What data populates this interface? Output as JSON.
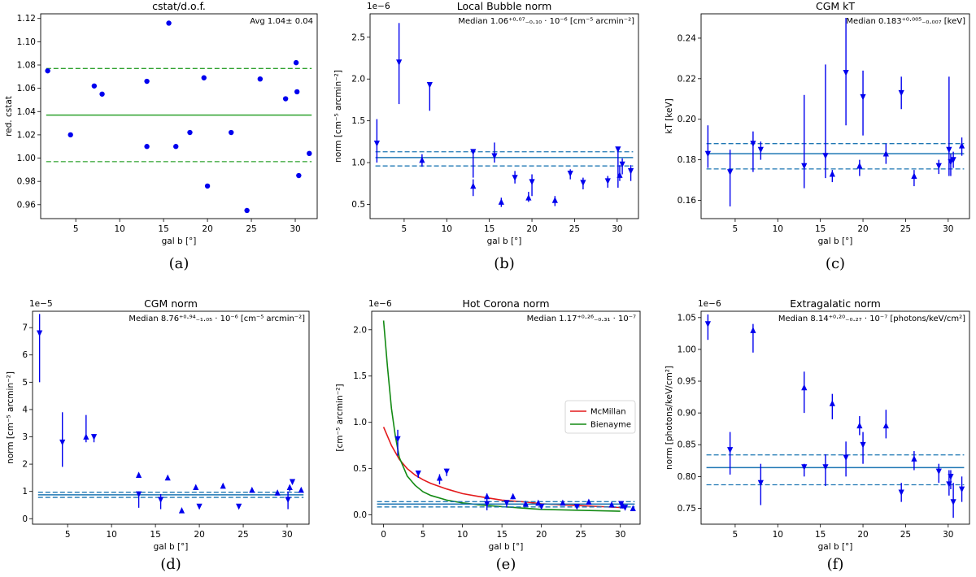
{
  "chart_data": [
    {
      "id": "a",
      "type": "scatter",
      "caption": "(a)",
      "title": "cstat/d.o.f.",
      "annotation": "Avg 1.04± 0.04",
      "xlabel": "gal b [°]",
      "ylabel": "red. cstat",
      "xlim": [
        1,
        32.5
      ],
      "ylim": [
        0.948,
        1.124
      ],
      "xticks": [
        5,
        10,
        15,
        20,
        25,
        30
      ],
      "yticks": [
        0.96,
        0.98,
        1.0,
        1.02,
        1.04,
        1.06,
        1.08,
        1.1,
        1.12
      ],
      "ytick_labels": [
        "0.96",
        "0.98",
        "1.00",
        "1.02",
        "1.04",
        "1.06",
        "1.08",
        "1.10",
        "1.12"
      ],
      "ref_color": "#2ca02c",
      "ref_line": 1.037,
      "ref_band": [
        0.997,
        1.077
      ],
      "points": [
        {
          "x": 1.8,
          "y": 1.075
        },
        {
          "x": 4.4,
          "y": 1.02
        },
        {
          "x": 7.1,
          "y": 1.062
        },
        {
          "x": 8.0,
          "y": 1.055
        },
        {
          "x": 13.1,
          "y": 1.066
        },
        {
          "x": 13.1,
          "y": 1.01
        },
        {
          "x": 15.6,
          "y": 1.116
        },
        {
          "x": 16.4,
          "y": 1.01
        },
        {
          "x": 18.0,
          "y": 1.022
        },
        {
          "x": 19.6,
          "y": 1.069
        },
        {
          "x": 20.0,
          "y": 0.976
        },
        {
          "x": 22.7,
          "y": 1.022
        },
        {
          "x": 24.5,
          "y": 0.955
        },
        {
          "x": 26.0,
          "y": 1.068
        },
        {
          "x": 28.9,
          "y": 1.051
        },
        {
          "x": 30.1,
          "y": 1.082
        },
        {
          "x": 30.2,
          "y": 1.057
        },
        {
          "x": 30.4,
          "y": 0.985
        },
        {
          "x": 31.6,
          "y": 1.004
        }
      ]
    },
    {
      "id": "b",
      "type": "scatter",
      "caption": "(b)",
      "title": "Local Bubble norm",
      "annotation": "Median 1.06⁺⁰·⁰⁷₋₀.₁₀ · 10⁻⁶ [cm⁻⁵ arcmin⁻²]",
      "multiplier": "1e−6",
      "xlabel": "gal b [°]",
      "ylabel": "norm [cm⁻⁵ arcmin⁻²]",
      "xlim": [
        1,
        32.5
      ],
      "ylim": [
        0.33,
        2.78
      ],
      "xticks": [
        5,
        10,
        15,
        20,
        25,
        30
      ],
      "yticks": [
        0.5,
        1.0,
        1.5,
        2.0,
        2.5
      ],
      "ytick_labels": [
        "0.5",
        "1.0",
        "1.5",
        "2.0",
        "2.5"
      ],
      "ref_color": "#1f77b4",
      "ref_line": 1.06,
      "ref_band": [
        0.96,
        1.13
      ],
      "points": [
        {
          "x": 1.8,
          "y": 1.23,
          "lo": 1.0,
          "hi": 1.52,
          "m": "down"
        },
        {
          "x": 4.4,
          "y": 2.2,
          "lo": 1.7,
          "hi": 2.67,
          "m": "down"
        },
        {
          "x": 7.1,
          "y": 1.03,
          "lo": 0.95,
          "hi": 1.1,
          "m": "up"
        },
        {
          "x": 8.0,
          "y": 1.93,
          "lo": 1.62,
          "hi": 1.95,
          "m": "down"
        },
        {
          "x": 13.1,
          "y": 1.13,
          "lo": 0.82,
          "hi": 1.15,
          "m": "down"
        },
        {
          "x": 13.1,
          "y": 0.72,
          "lo": 0.6,
          "hi": 0.8,
          "m": "up"
        },
        {
          "x": 15.6,
          "y": 1.08,
          "lo": 1.0,
          "hi": 1.24,
          "m": "down"
        },
        {
          "x": 16.4,
          "y": 0.53,
          "lo": 0.47,
          "hi": 0.58,
          "m": "up"
        },
        {
          "x": 18.0,
          "y": 0.82,
          "lo": 0.75,
          "hi": 0.9,
          "m": "down"
        },
        {
          "x": 19.6,
          "y": 0.58,
          "lo": 0.53,
          "hi": 0.65,
          "m": "up"
        },
        {
          "x": 20.0,
          "y": 0.77,
          "lo": 0.6,
          "hi": 0.86,
          "m": "down"
        },
        {
          "x": 22.7,
          "y": 0.55,
          "lo": 0.48,
          "hi": 0.6,
          "m": "up"
        },
        {
          "x": 24.5,
          "y": 0.87,
          "lo": 0.8,
          "hi": 0.92,
          "m": "down"
        },
        {
          "x": 26.0,
          "y": 0.76,
          "lo": 0.68,
          "hi": 0.82,
          "m": "down"
        },
        {
          "x": 28.9,
          "y": 0.78,
          "lo": 0.7,
          "hi": 0.84,
          "m": "down"
        },
        {
          "x": 30.1,
          "y": 1.16,
          "lo": 0.7,
          "hi": 1.18,
          "m": "down"
        },
        {
          "x": 30.3,
          "y": 0.85,
          "lo": 0.78,
          "hi": 0.97,
          "m": "up"
        },
        {
          "x": 30.6,
          "y": 0.98,
          "lo": 0.86,
          "hi": 1.05,
          "m": "down"
        },
        {
          "x": 31.6,
          "y": 0.9,
          "lo": 0.78,
          "hi": 0.97,
          "m": "down"
        }
      ]
    },
    {
      "id": "c",
      "type": "scatter",
      "caption": "(c)",
      "title": "CGM kT",
      "annotation": "Median 0.183⁺⁰·⁰⁰⁵₋₀.₀₀₇ [keV]",
      "xlabel": "gal b [°]",
      "ylabel": "kT [keV]",
      "xlim": [
        1,
        32.5
      ],
      "ylim": [
        0.151,
        0.252
      ],
      "xticks": [
        5,
        10,
        15,
        20,
        25,
        30
      ],
      "yticks": [
        0.16,
        0.18,
        0.2,
        0.22,
        0.24
      ],
      "ytick_labels": [
        "0.16",
        "0.18",
        "0.20",
        "0.22",
        "0.24"
      ],
      "ref_color": "#1f77b4",
      "ref_line": 0.183,
      "ref_band": [
        0.1755,
        0.188
      ],
      "points": [
        {
          "x": 1.8,
          "y": 0.183,
          "lo": 0.176,
          "hi": 0.197,
          "m": "down"
        },
        {
          "x": 4.4,
          "y": 0.174,
          "lo": 0.157,
          "hi": 0.185,
          "m": "down"
        },
        {
          "x": 7.1,
          "y": 0.188,
          "lo": 0.174,
          "hi": 0.194,
          "m": "down"
        },
        {
          "x": 8.0,
          "y": 0.185,
          "lo": 0.18,
          "hi": 0.189,
          "m": "down"
        },
        {
          "x": 13.1,
          "y": 0.177,
          "lo": 0.166,
          "hi": 0.212,
          "m": "down"
        },
        {
          "x": 15.6,
          "y": 0.182,
          "lo": 0.171,
          "hi": 0.227,
          "m": "down"
        },
        {
          "x": 16.4,
          "y": 0.173,
          "lo": 0.169,
          "hi": 0.175,
          "m": "up"
        },
        {
          "x": 18.0,
          "y": 0.223,
          "lo": 0.197,
          "hi": 0.25,
          "m": "down"
        },
        {
          "x": 19.6,
          "y": 0.177,
          "lo": 0.172,
          "hi": 0.18,
          "m": "up"
        },
        {
          "x": 20.0,
          "y": 0.211,
          "lo": 0.192,
          "hi": 0.224,
          "m": "down"
        },
        {
          "x": 22.7,
          "y": 0.183,
          "lo": 0.178,
          "hi": 0.188,
          "m": "up"
        },
        {
          "x": 24.5,
          "y": 0.213,
          "lo": 0.205,
          "hi": 0.221,
          "m": "down"
        },
        {
          "x": 26.0,
          "y": 0.172,
          "lo": 0.167,
          "hi": 0.175,
          "m": "up"
        },
        {
          "x": 28.9,
          "y": 0.177,
          "lo": 0.173,
          "hi": 0.18,
          "m": "down"
        },
        {
          "x": 30.1,
          "y": 0.185,
          "lo": 0.172,
          "hi": 0.221,
          "m": "down"
        },
        {
          "x": 30.3,
          "y": 0.179,
          "lo": 0.172,
          "hi": 0.183,
          "m": "down"
        },
        {
          "x": 30.6,
          "y": 0.18,
          "lo": 0.176,
          "hi": 0.184,
          "m": "down"
        },
        {
          "x": 31.6,
          "y": 0.187,
          "lo": 0.182,
          "hi": 0.191,
          "m": "up"
        }
      ]
    },
    {
      "id": "d",
      "type": "scatter",
      "caption": "(d)",
      "title": "CGM norm",
      "annotation": "Median 8.76⁺⁰·⁹⁴₋₁.₀₅ · 10⁻⁶ [cm⁻⁵ arcmin⁻²]",
      "multiplier": "1e−5",
      "xlabel": "gal b [°]",
      "ylabel": "norm [cm⁻⁵ arcmin⁻²]",
      "xlim": [
        1,
        32.5
      ],
      "ylim": [
        -0.2,
        7.6
      ],
      "xticks": [
        5,
        10,
        15,
        20,
        25,
        30
      ],
      "yticks": [
        0,
        1,
        2,
        3,
        4,
        5,
        6,
        7
      ],
      "ytick_labels": [
        "0",
        "1",
        "2",
        "3",
        "4",
        "5",
        "6",
        "7"
      ],
      "ref_color": "#1f77b4",
      "ref_line": 0.876,
      "ref_band": [
        0.78,
        0.97
      ],
      "points": [
        {
          "x": 1.8,
          "y": 6.8,
          "lo": 5.0,
          "hi": 7.5,
          "m": "down"
        },
        {
          "x": 4.4,
          "y": 2.8,
          "lo": 1.9,
          "hi": 3.9,
          "m": "down"
        },
        {
          "x": 7.1,
          "y": 3.0,
          "lo": 2.8,
          "hi": 3.8,
          "m": "up"
        },
        {
          "x": 8.0,
          "y": 3.0,
          "lo": 2.8,
          "hi": 3.1,
          "m": "down"
        },
        {
          "x": 13.1,
          "y": 1.6,
          "lo": 1.55,
          "hi": 1.65,
          "m": "up"
        },
        {
          "x": 13.1,
          "y": 0.9,
          "lo": 0.4,
          "hi": 1.0,
          "m": "down"
        },
        {
          "x": 15.6,
          "y": 0.7,
          "lo": 0.35,
          "hi": 0.9,
          "m": "down"
        },
        {
          "x": 16.4,
          "y": 1.5,
          "lo": 1.45,
          "hi": 1.55,
          "m": "up"
        },
        {
          "x": 18.0,
          "y": 0.3,
          "lo": 0.25,
          "hi": 0.35,
          "m": "up"
        },
        {
          "x": 19.6,
          "y": 1.15,
          "lo": 1.1,
          "hi": 1.2,
          "m": "up"
        },
        {
          "x": 20.0,
          "y": 0.45,
          "lo": 0.4,
          "hi": 0.5,
          "m": "down"
        },
        {
          "x": 22.7,
          "y": 1.2,
          "lo": 1.15,
          "hi": 1.25,
          "m": "up"
        },
        {
          "x": 24.5,
          "y": 0.45,
          "lo": 0.4,
          "hi": 0.5,
          "m": "down"
        },
        {
          "x": 26.0,
          "y": 1.05,
          "lo": 1.0,
          "hi": 1.1,
          "m": "up"
        },
        {
          "x": 28.9,
          "y": 0.95,
          "lo": 0.9,
          "hi": 1.0,
          "m": "up"
        },
        {
          "x": 30.1,
          "y": 0.7,
          "lo": 0.35,
          "hi": 1.0,
          "m": "down"
        },
        {
          "x": 30.3,
          "y": 1.15,
          "lo": 1.0,
          "hi": 1.2,
          "m": "up"
        },
        {
          "x": 30.6,
          "y": 1.35,
          "lo": 1.3,
          "hi": 1.4,
          "m": "down"
        },
        {
          "x": 31.6,
          "y": 1.05,
          "lo": 1.0,
          "hi": 1.1,
          "m": "up"
        }
      ]
    },
    {
      "id": "e",
      "type": "scatter",
      "caption": "(e)",
      "title": "Hot Corona norm",
      "annotation": "Median 1.17⁺⁰·²⁶₋₀.₃₁ · 10⁻⁷",
      "multiplier": "1e−6",
      "xlabel": "gal b [°]",
      "ylabel": "[cm⁻⁵ arcmin⁻²]",
      "xlim": [
        -1.5,
        32.5
      ],
      "ylim": [
        -0.1,
        2.2
      ],
      "xticks": [
        0,
        5,
        10,
        15,
        20,
        25,
        30
      ],
      "yticks": [
        0.0,
        0.5,
        1.0,
        1.5,
        2.0
      ],
      "ytick_labels": [
        "0.0",
        "0.5",
        "1.0",
        "1.5",
        "2.0"
      ],
      "ref_color": "#1f77b4",
      "ref_line": 0.117,
      "ref_band": [
        0.086,
        0.143
      ],
      "legend": [
        {
          "label": "McMillan",
          "color": "#e31a1c"
        },
        {
          "label": "Bienayme",
          "color": "#138a13"
        }
      ],
      "curves": [
        {
          "name": "McMillan",
          "color": "#e31a1c",
          "x": [
            0,
            1,
            2,
            3,
            4,
            5,
            6,
            8,
            10,
            12,
            15,
            18,
            20,
            25,
            30
          ],
          "y": [
            0.95,
            0.75,
            0.6,
            0.5,
            0.43,
            0.38,
            0.34,
            0.28,
            0.23,
            0.2,
            0.16,
            0.14,
            0.12,
            0.1,
            0.08
          ]
        },
        {
          "name": "Bienayme",
          "color": "#138a13",
          "x": [
            0,
            0.5,
            1,
            1.5,
            2,
            3,
            4,
            5,
            6,
            8,
            10,
            12,
            15,
            20,
            25,
            30
          ],
          "y": [
            2.1,
            1.6,
            1.15,
            0.85,
            0.62,
            0.42,
            0.32,
            0.25,
            0.21,
            0.16,
            0.13,
            0.11,
            0.09,
            0.06,
            0.05,
            0.04
          ]
        }
      ],
      "points": [
        {
          "x": 1.8,
          "y": 0.82,
          "lo": 0.64,
          "hi": 0.92,
          "m": "down"
        },
        {
          "x": 4.4,
          "y": 0.45,
          "lo": 0.4,
          "hi": 0.47,
          "m": "down"
        },
        {
          "x": 7.1,
          "y": 0.4,
          "lo": 0.33,
          "hi": 0.44,
          "m": "up"
        },
        {
          "x": 8.0,
          "y": 0.47,
          "lo": 0.42,
          "hi": 0.5,
          "m": "down"
        },
        {
          "x": 13.1,
          "y": 0.2,
          "lo": 0.15,
          "hi": 0.23,
          "m": "up"
        },
        {
          "x": 13.1,
          "y": 0.12,
          "lo": 0.05,
          "hi": 0.14,
          "m": "down"
        },
        {
          "x": 15.6,
          "y": 0.13,
          "lo": 0.08,
          "hi": 0.15,
          "m": "down"
        },
        {
          "x": 16.4,
          "y": 0.2,
          "lo": 0.17,
          "hi": 0.22,
          "m": "up"
        },
        {
          "x": 18.0,
          "y": 0.12,
          "lo": 0.09,
          "hi": 0.14,
          "m": "up"
        },
        {
          "x": 19.6,
          "y": 0.13,
          "lo": 0.1,
          "hi": 0.15,
          "m": "up"
        },
        {
          "x": 20.0,
          "y": 0.09,
          "lo": 0.06,
          "hi": 0.11,
          "m": "down"
        },
        {
          "x": 22.7,
          "y": 0.13,
          "lo": 0.11,
          "hi": 0.15,
          "m": "up"
        },
        {
          "x": 24.5,
          "y": 0.09,
          "lo": 0.07,
          "hi": 0.11,
          "m": "down"
        },
        {
          "x": 26.0,
          "y": 0.14,
          "lo": 0.12,
          "hi": 0.16,
          "m": "up"
        },
        {
          "x": 28.9,
          "y": 0.11,
          "lo": 0.09,
          "hi": 0.13,
          "m": "up"
        },
        {
          "x": 30.1,
          "y": 0.12,
          "lo": 0.09,
          "hi": 0.14,
          "m": "down"
        },
        {
          "x": 30.3,
          "y": 0.1,
          "lo": 0.07,
          "hi": 0.12,
          "m": "up"
        },
        {
          "x": 30.6,
          "y": 0.08,
          "lo": 0.06,
          "hi": 0.1,
          "m": "down"
        },
        {
          "x": 31.6,
          "y": 0.07,
          "lo": 0.05,
          "hi": 0.09,
          "m": "up"
        }
      ]
    },
    {
      "id": "f",
      "type": "scatter",
      "caption": "(f)",
      "title": "Extragalatic norm",
      "annotation": "Median 8.14⁺⁰·²⁰₋₀.₂₇ · 10⁻⁷ [photons/keV/cm²]",
      "multiplier": "1e−6",
      "xlabel": "gal b [°]",
      "ylabel": "norm [photons/keV/cm²]",
      "xlim": [
        1,
        32.5
      ],
      "ylim": [
        0.725,
        1.06
      ],
      "xticks": [
        5,
        10,
        15,
        20,
        25,
        30
      ],
      "yticks": [
        0.75,
        0.8,
        0.85,
        0.9,
        0.95,
        1.0,
        1.05
      ],
      "ytick_labels": [
        "0.75",
        "0.80",
        "0.85",
        "0.90",
        "0.95",
        "1.00",
        "1.05"
      ],
      "ref_color": "#1f77b4",
      "ref_line": 0.814,
      "ref_band": [
        0.787,
        0.834
      ],
      "points": [
        {
          "x": 1.8,
          "y": 1.04,
          "lo": 1.015,
          "hi": 1.055,
          "m": "down"
        },
        {
          "x": 4.4,
          "y": 0.842,
          "lo": 0.803,
          "hi": 0.87,
          "m": "down"
        },
        {
          "x": 7.1,
          "y": 1.03,
          "lo": 0.995,
          "hi": 1.04,
          "m": "up"
        },
        {
          "x": 8.0,
          "y": 0.79,
          "lo": 0.755,
          "hi": 0.82,
          "m": "down"
        },
        {
          "x": 13.1,
          "y": 0.94,
          "lo": 0.9,
          "hi": 0.965,
          "m": "up"
        },
        {
          "x": 13.1,
          "y": 0.815,
          "lo": 0.8,
          "hi": 0.82,
          "m": "down"
        },
        {
          "x": 15.6,
          "y": 0.815,
          "lo": 0.785,
          "hi": 0.835,
          "m": "down"
        },
        {
          "x": 16.4,
          "y": 0.915,
          "lo": 0.89,
          "hi": 0.93,
          "m": "up"
        },
        {
          "x": 18.0,
          "y": 0.83,
          "lo": 0.8,
          "hi": 0.855,
          "m": "down"
        },
        {
          "x": 19.6,
          "y": 0.88,
          "lo": 0.865,
          "hi": 0.895,
          "m": "up"
        },
        {
          "x": 20.0,
          "y": 0.85,
          "lo": 0.82,
          "hi": 0.87,
          "m": "down"
        },
        {
          "x": 22.7,
          "y": 0.88,
          "lo": 0.86,
          "hi": 0.905,
          "m": "up"
        },
        {
          "x": 24.5,
          "y": 0.775,
          "lo": 0.76,
          "hi": 0.79,
          "m": "down"
        },
        {
          "x": 26.0,
          "y": 0.828,
          "lo": 0.81,
          "hi": 0.84,
          "m": "up"
        },
        {
          "x": 28.9,
          "y": 0.808,
          "lo": 0.79,
          "hi": 0.82,
          "m": "down"
        },
        {
          "x": 30.1,
          "y": 0.788,
          "lo": 0.77,
          "hi": 0.81,
          "m": "down"
        },
        {
          "x": 30.3,
          "y": 0.8,
          "lo": 0.78,
          "hi": 0.81,
          "m": "down"
        },
        {
          "x": 30.6,
          "y": 0.76,
          "lo": 0.735,
          "hi": 0.79,
          "m": "down"
        },
        {
          "x": 31.6,
          "y": 0.78,
          "lo": 0.76,
          "hi": 0.8,
          "m": "down"
        }
      ]
    }
  ]
}
